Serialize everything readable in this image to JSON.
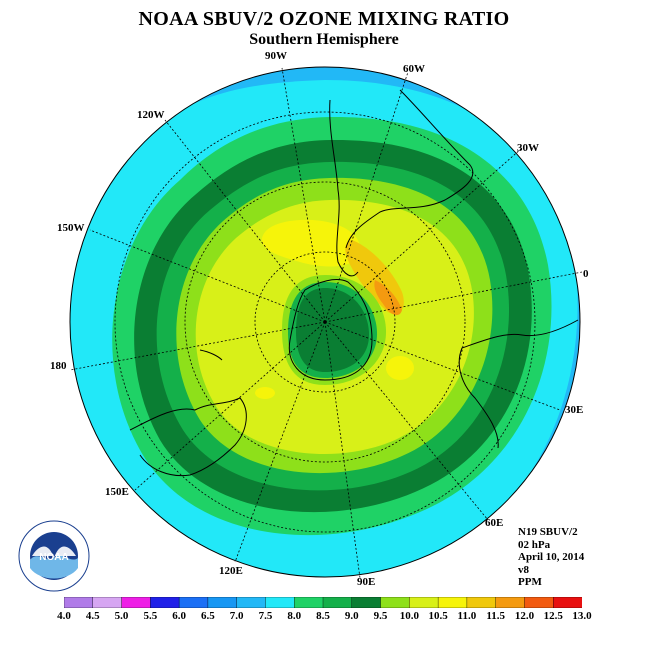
{
  "title": "NOAA SBUV/2 OZONE MIXING RATIO",
  "subtitle": "Southern Hemisphere",
  "map": {
    "projection": "polar-stereographic-south",
    "longitude_labels": [
      "0",
      "30E",
      "60E",
      "90E",
      "120E",
      "150E",
      "180",
      "150W",
      "120W",
      "90W",
      "60W",
      "30W"
    ]
  },
  "info": {
    "satellite": "N19 SBUV/2",
    "pressure": "02 hPa",
    "date": "April 10, 2014",
    "version": "v8",
    "units": "PPM"
  },
  "colorbar": {
    "ticks": [
      "4.0",
      "4.5",
      "5.0",
      "5.5",
      "6.0",
      "6.5",
      "7.0",
      "7.5",
      "8.0",
      "8.5",
      "9.0",
      "9.5",
      "10.0",
      "10.5",
      "11.0",
      "11.5",
      "12.0",
      "12.5",
      "13.0"
    ],
    "colors": [
      "#b07be8",
      "#d6a6f2",
      "#ee1ee6",
      "#2020e8",
      "#1b6ff5",
      "#1797f3",
      "#22b8f6",
      "#22e8f8",
      "#1fd266",
      "#14b04a",
      "#0a7e33",
      "#8ee01a",
      "#d8f018",
      "#f6f40a",
      "#f0c80c",
      "#f49a10",
      "#f25a10",
      "#e81010",
      "#8a5a3a"
    ]
  },
  "logo": {
    "text": "NOAA",
    "ring_text": "NATIONAL OCEANIC AND ATMOSPHERIC ADMINISTRATION",
    "bottom_text": "U.S. DEPARTMENT OF COMMERCE"
  }
}
